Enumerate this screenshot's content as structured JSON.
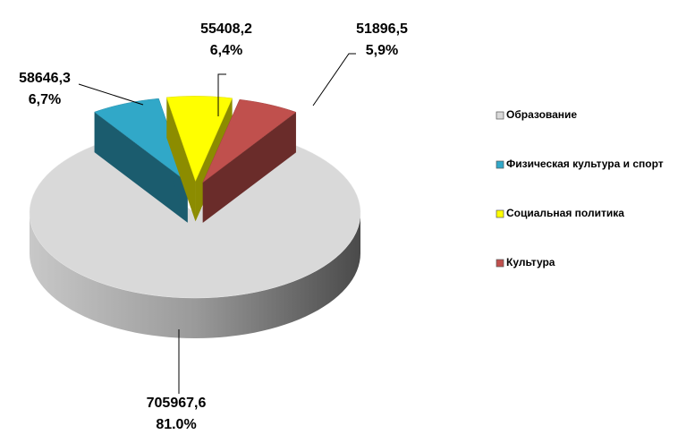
{
  "chart_data": {
    "type": "pie",
    "categories": [
      "Образование",
      "Физическая культура и спорт",
      "Социальная политика",
      "Культура"
    ],
    "values": [
      705967.6,
      58646.3,
      55408.2,
      51896.5
    ],
    "value_labels": [
      "705967,6",
      "58646,3",
      "55408,2",
      "51896,5"
    ],
    "percent_values": [
      81.0,
      6.7,
      6.4,
      5.9
    ],
    "percent_labels": [
      "81.0%",
      "6,7%",
      "6,4%",
      "5,9%"
    ],
    "colors": [
      "#d9d9d9",
      "#31a8c8",
      "#ffff00",
      "#c0504d"
    ],
    "legend": "right"
  }
}
